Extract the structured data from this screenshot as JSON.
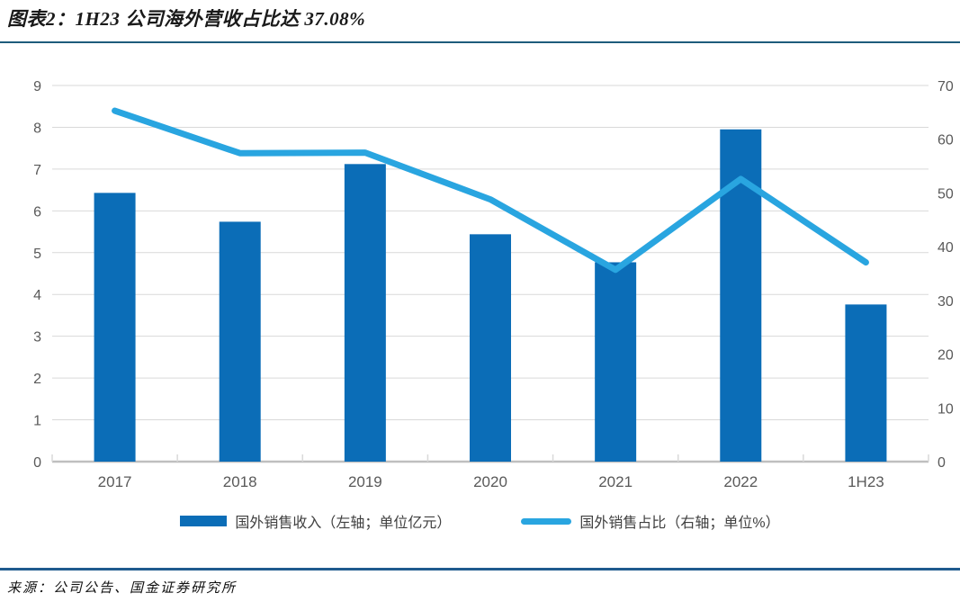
{
  "figure": {
    "title": "图表2：1H23 公司海外营收占比达 37.08%",
    "source": "来源：公司公告、国金证券研究所",
    "title_rule_color": "#1E5C7C",
    "bottom_rule_color": "#1F5B8E"
  },
  "chart_data": {
    "type": "bar",
    "subtype": "bar-line-combo",
    "categories": [
      "2017",
      "2018",
      "2019",
      "2020",
      "2021",
      "2022",
      "1H23"
    ],
    "series": [
      {
        "name": "国外销售收入（左轴；单位亿元）",
        "type": "bar",
        "axis": "left",
        "color": "#0B6DB7",
        "values": [
          6.43,
          5.74,
          7.12,
          5.44,
          4.77,
          7.95,
          3.76
        ]
      },
      {
        "name": "国外销售占比（右轴；单位%）",
        "type": "line",
        "axis": "right",
        "color": "#29A5E0",
        "values": [
          65.3,
          57.4,
          57.5,
          48.8,
          35.7,
          52.6,
          37.08
        ]
      }
    ],
    "left_axis": {
      "min": 0,
      "max": 9,
      "step": 1
    },
    "right_axis": {
      "min": 0,
      "max": 70,
      "step": 10
    },
    "grid": true,
    "legend_position": "bottom",
    "colors": {
      "grid": "#d9d9d9",
      "baseline": "#bfbfbf",
      "tick_text": "#595959",
      "category_text": "#595959"
    }
  }
}
